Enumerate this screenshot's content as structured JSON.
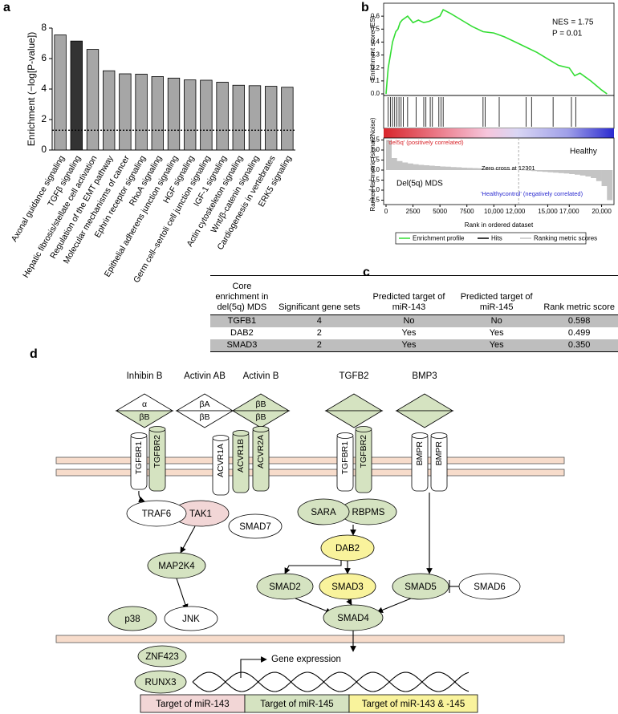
{
  "chart_data": [
    {
      "type": "bar",
      "panel_label": "a",
      "ylabel": "Enrichment (−log[P-value])",
      "categories": [
        "Axonal guidance signaling",
        "TGFβ signaling",
        "Hepatic fibrosis/stellate cell activation",
        "Regulation of the EMT pathway",
        "Molecular mechanisms of cancer",
        "Ephrin receptor signaling",
        "RhoA signaling",
        "Epithelial adherens junction signaling",
        "HGF signaling",
        "Germ cell–sertoli cell junction signaling",
        "IGF-1 signaling",
        "Actin cytoskeleton signaling",
        "Wnt/β-catenin signaling",
        "Cardiogenesis in vertebrates",
        "ERK5 signaling"
      ],
      "values": [
        7.55,
        7.15,
        6.6,
        5.2,
        5.0,
        4.98,
        4.82,
        4.72,
        4.6,
        4.58,
        4.45,
        4.25,
        4.22,
        4.18,
        4.12
      ],
      "colors": [
        "#a6a6a6",
        "#333333",
        "#a6a6a6",
        "#a6a6a6",
        "#a6a6a6",
        "#a6a6a6",
        "#a6a6a6",
        "#a6a6a6",
        "#a6a6a6",
        "#a6a6a6",
        "#a6a6a6",
        "#a6a6a6",
        "#a6a6a6",
        "#a6a6a6",
        "#a6a6a6"
      ],
      "threshold": 1.3,
      "ylim": [
        0,
        8
      ],
      "yticks": [
        0,
        2,
        4,
        6,
        8
      ]
    },
    {
      "type": "gsea",
      "panel_label": "b",
      "ylabel": "Enrichment score (ES)",
      "y2label": "Ranked list metric (signal2Noise)",
      "xlabel": "Rank in ordered dataset",
      "xlim": [
        0,
        21000
      ],
      "xticks": [
        0,
        2500,
        5000,
        7500,
        {
          "value": 10000,
          "label": "10,000"
        },
        {
          "value": 12000,
          "label": "12,000"
        },
        {
          "value": 15000,
          "label": "15,000"
        },
        {
          "value": 17000,
          "label": "17,000"
        },
        {
          "value": 20000,
          "label": "20,000"
        }
      ],
      "ylim": [
        0,
        0.7
      ],
      "yticks": [
        {
          "value": 0,
          "label": "0.0"
        },
        0.1,
        0.2,
        0.3,
        0.4,
        0.5,
        0.6
      ],
      "y2lim": [
        -1.6,
        1.6
      ],
      "y2ticks": [
        1.5,
        {
          "value": 1,
          "label": "1.0"
        },
        0.5,
        {
          "value": 0,
          "label": "0.0"
        },
        -0.5,
        {
          "value": -1,
          "label": "-1.0"
        },
        -1.5
      ],
      "series": [
        {
          "name": "Enrichment profile",
          "color": "#33dd33",
          "x": [
            0,
            100,
            200,
            400,
            600,
            900,
            1100,
            1300,
            1500,
            2000,
            2500,
            3000,
            3500,
            4000,
            4500,
            5000,
            5300,
            6000,
            7000,
            8000,
            9000,
            10000,
            11000,
            12000,
            13000,
            14000,
            15000,
            16000,
            17000,
            17500,
            18000,
            19000,
            20000,
            20500
          ],
          "values": [
            0,
            0.1,
            0.2,
            0.3,
            0.4,
            0.48,
            0.5,
            0.55,
            0.57,
            0.6,
            0.55,
            0.57,
            0.55,
            0.56,
            0.58,
            0.6,
            0.65,
            0.62,
            0.57,
            0.52,
            0.48,
            0.47,
            0.44,
            0.4,
            0.36,
            0.32,
            0.27,
            0.22,
            0.2,
            0.14,
            0.16,
            0.1,
            0.03,
            0
          ]
        },
        {
          "name": "Hits",
          "color": "#000000",
          "x": [
            200,
            400,
            600,
            800,
            1000,
            1200,
            1400,
            1600,
            2000,
            2800,
            3500,
            3700,
            4100,
            4300,
            4900,
            5100,
            5300,
            9000,
            9200,
            10500,
            13000,
            13500,
            15500,
            17200,
            17600
          ]
        },
        {
          "name": "Ranking metric scores",
          "color": "#c4c4c4",
          "axis": "y2",
          "x": [
            0,
            500,
            1000,
            1500,
            2000,
            2500,
            3000,
            3500,
            4000,
            4500,
            5000,
            5500,
            6000,
            6500,
            7000,
            7500,
            8000,
            8500,
            9000,
            9500,
            10000,
            10500,
            11000,
            11500,
            12000,
            12500,
            13000,
            13500,
            14000,
            14500,
            15000,
            15500,
            16000,
            16500,
            17000,
            17500,
            18000,
            18500,
            19000,
            19500,
            20000,
            20500
          ],
          "values": [
            1.5,
            0.6,
            0.45,
            0.38,
            0.33,
            0.29,
            0.26,
            0.24,
            0.22,
            0.2,
            0.18,
            0.17,
            0.15,
            0.14,
            0.12,
            0.11,
            0.1,
            0.09,
            0.08,
            0.07,
            0.06,
            0.05,
            0.04,
            0.03,
            0.01,
            -0.01,
            -0.03,
            -0.05,
            -0.07,
            -0.09,
            -0.11,
            -0.13,
            -0.15,
            -0.17,
            -0.2,
            -0.23,
            -0.27,
            -0.32,
            -0.4,
            -0.55,
            -0.8,
            -1.5
          ]
        }
      ],
      "zero_cross": 12301,
      "annotations": {
        "nes": "NES = 1.75",
        "p": "P = 0.01",
        "positive": "'del5q' (positively correlated)",
        "healthy": "Healthy",
        "zero_cross": "Zero cross at 12301",
        "del5q": "Del(5q) MDS",
        "negative": "'Healthycontrol' (negatively correlated)"
      }
    }
  ],
  "table": {
    "panel_label": "c",
    "header": [
      "Core enrichment in del(5q) MDS",
      "Significant gene sets",
      "Predicted target of miR-143",
      "Predicted target of miR-145",
      "Rank metric score"
    ],
    "rows": [
      [
        "TGFB1",
        "4",
        "No",
        "No",
        "0.598"
      ],
      [
        "DAB2",
        "2",
        "Yes",
        "Yes",
        "0.499"
      ],
      [
        "SMAD3",
        "2",
        "Yes",
        "Yes",
        "0.350"
      ]
    ]
  },
  "diagram": {
    "panel_label": "d",
    "ligands": [
      {
        "label": "Inhibin B",
        "top": "α",
        "bottom": "βB",
        "top_color": "#ffffff",
        "bottom_color": "#d5e3c1"
      },
      {
        "label": "Activin AB",
        "top": "βA",
        "bottom": "βB",
        "top_color": "#ffffff",
        "bottom_color": "#ffffff"
      },
      {
        "label": "Activin B",
        "top": "βB",
        "bottom": "βB",
        "top_color": "#d5e3c1",
        "bottom_color": "#d5e3c1"
      },
      {
        "label": "TGFB2",
        "top_color": "#d5e3c1",
        "bottom_color": "#d5e3c1"
      },
      {
        "label": "BMP3",
        "top_color": "#d5e3c1",
        "bottom_color": "#d5e3c1"
      }
    ],
    "receptors": [
      {
        "label": "TGFBR1",
        "color": "#ffffff"
      },
      {
        "label": "TGFBR2",
        "color": "#d5e3c1"
      },
      {
        "label": "ACVR1A",
        "color": "#ffffff"
      },
      {
        "label": "ACVR1B",
        "color": "#d5e3c1"
      },
      {
        "label": "ACVR2A",
        "color": "#d5e3c1"
      },
      {
        "label": "TGFBR1",
        "color": "#ffffff"
      },
      {
        "label": "TGFBR2",
        "color": "#d5e3c1"
      },
      {
        "label": "BMPR",
        "color": "#ffffff"
      },
      {
        "label": "BMPR",
        "color": "#ffffff"
      }
    ],
    "nodes": [
      {
        "label": "TRAF6",
        "color": "#ffffff"
      },
      {
        "label": "TAK1",
        "color": "#f2d6d6"
      },
      {
        "label": "SMAD7",
        "color": "#ffffff"
      },
      {
        "label": "SARA",
        "color": "#d5e3c1"
      },
      {
        "label": "RBPMS",
        "color": "#d5e3c1"
      },
      {
        "label": "DAB2",
        "color": "#f9f39c"
      },
      {
        "label": "MAP2K4",
        "color": "#d5e3c1"
      },
      {
        "label": "SMAD2",
        "color": "#d5e3c1"
      },
      {
        "label": "SMAD3",
        "color": "#f9f39c"
      },
      {
        "label": "SMAD5",
        "color": "#d5e3c1"
      },
      {
        "label": "SMAD6",
        "color": "#ffffff"
      },
      {
        "label": "p38",
        "color": "#d5e3c1"
      },
      {
        "label": "JNK",
        "color": "#ffffff"
      },
      {
        "label": "SMAD4",
        "color": "#d5e3c1"
      },
      {
        "label": "ZNF423",
        "color": "#d5e3c1"
      },
      {
        "label": "RUNX3",
        "color": "#d5e3c1"
      }
    ],
    "gene_expression": "Gene expression",
    "legend": [
      {
        "label": "Target of miR-143",
        "color": "#f2d6d6"
      },
      {
        "label": "Target of miR-145",
        "color": "#d5e3c1"
      },
      {
        "label": "Target of miR-143 & -145",
        "color": "#f9f39c"
      }
    ]
  }
}
